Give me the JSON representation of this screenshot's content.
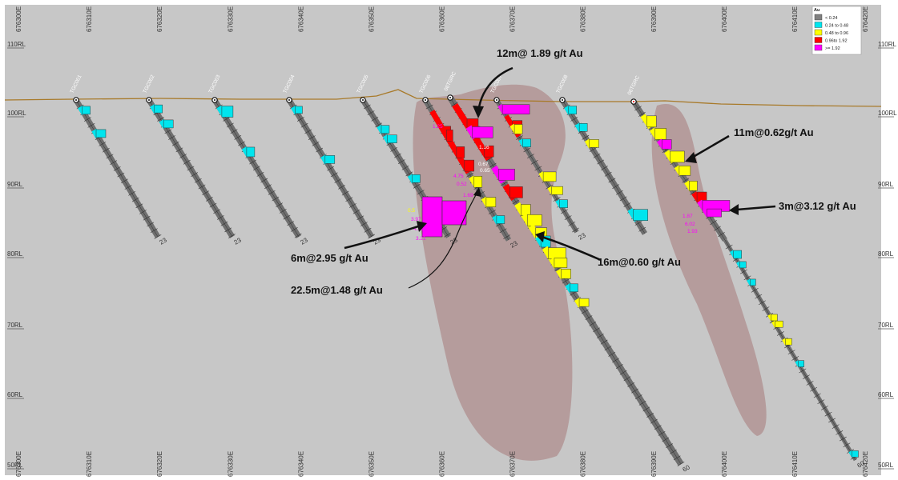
{
  "section": {
    "eastings": [
      "676300E",
      "676310E",
      "676320E",
      "676330E",
      "676340E",
      "676350E",
      "676360E",
      "676370E",
      "676380E",
      "676390E",
      "676400E",
      "676410E",
      "676420E"
    ],
    "rls": [
      "110RL",
      "100RL",
      "90RL",
      "80RL",
      "70RL",
      "60RL",
      "50RL"
    ]
  },
  "legend": {
    "title": "Au",
    "items": [
      {
        "label": "< 0.24",
        "color": "#808080"
      },
      {
        "label": "0.24 to 0.48",
        "color": "#00e5ee"
      },
      {
        "label": "0.48 to 0.96",
        "color": "#ffff00"
      },
      {
        "label": "0.96to 1.92",
        "color": "#ff0000"
      },
      {
        "label": ">= 1.92",
        "color": "#ff00ff"
      }
    ]
  },
  "annotations": [
    {
      "id": "ann-12m",
      "text": "12m@ 1.89 g/t Au"
    },
    {
      "id": "ann-11m",
      "text": "11m@0.62g/t Au"
    },
    {
      "id": "ann-3m",
      "text": "3m@3.12 g/t Au"
    },
    {
      "id": "ann-6m",
      "text": "6m@2.95 g/t Au"
    },
    {
      "id": "ann-16m",
      "text": "16m@0.60 g/t Au"
    },
    {
      "id": "ann-22m",
      "text": "22.5m@1.48 g/t Au"
    }
  ],
  "holes": [
    {
      "collar_label": "TGC001",
      "end_depth": "23"
    },
    {
      "collar_label": "TGC002",
      "end_depth": "23"
    },
    {
      "collar_label": "TGC003",
      "end_depth": "23"
    },
    {
      "collar_label": "TGC004",
      "end_depth": "23"
    },
    {
      "collar_label": "TGC005",
      "end_depth": "23"
    },
    {
      "collar_label": "TGC006",
      "end_depth": "23"
    },
    {
      "collar_label": "06TGRC",
      "end_depth": "60"
    },
    {
      "collar_label": "TGC007",
      "end_depth": "23"
    },
    {
      "collar_label": "TGC008",
      "end_depth": ""
    },
    {
      "collar_label": "06TGRC",
      "end_depth": ""
    },
    {
      "collar_label": "",
      "end_depth": "60"
    }
  ],
  "assay_values": {
    "red_hole": [
      "1.25",
      "1.16",
      "0.67",
      "0.65",
      "4.75",
      "0.52",
      "1.69"
    ],
    "mid_magenta": [
      "3.97",
      "4.31",
      "3.21",
      "0.5"
    ],
    "right_magenta": [
      "1.87",
      "6.02",
      "1.93"
    ]
  },
  "colors": {
    "background": "#c7c7c7",
    "surface": "#a87a2a",
    "halo": "#a06868",
    "low": "#808080",
    "cyan": "#00e5ee",
    "yellow": "#ffff00",
    "red": "#ff0000",
    "magenta": "#ff00ff"
  }
}
